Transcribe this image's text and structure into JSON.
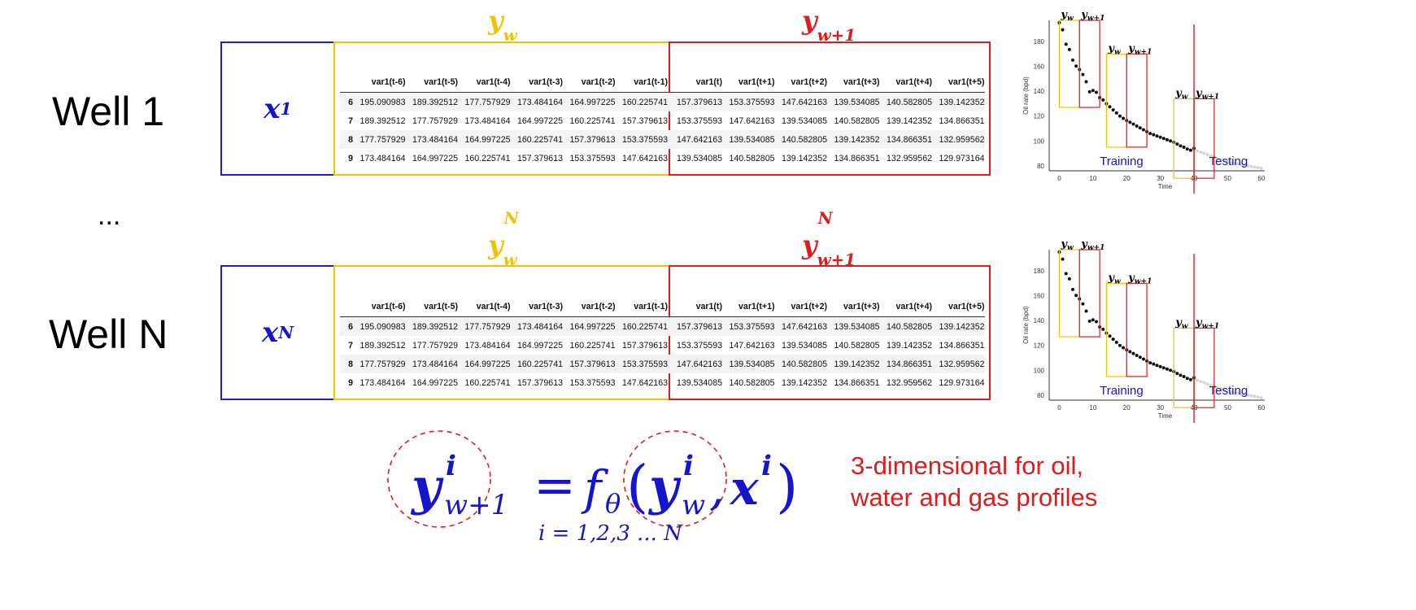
{
  "wells": [
    {
      "label": "Well 1",
      "x_sup": "1",
      "yw_sup": "1",
      "yw1_sup": "1"
    },
    {
      "label": "Well N",
      "x_sup": "N",
      "yw_sup": "N",
      "yw1_sup": "N"
    }
  ],
  "ellipsis": "...",
  "symbols": {
    "x": "x",
    "y": "y",
    "w": "w",
    "w1": "w+1"
  },
  "table": {
    "columns": [
      "var1(t-6)",
      "var1(t-5)",
      "var1(t-4)",
      "var1(t-3)",
      "var1(t-2)",
      "var1(t-1)",
      "var1(t)",
      "var1(t+1)",
      "var1(t+2)",
      "var1(t+3)",
      "var1(t+4)",
      "var1(t+5)"
    ],
    "rows": [
      {
        "index": "6",
        "values": [
          "195.090983",
          "189.392512",
          "177.757929",
          "173.484164",
          "164.997225",
          "160.225741",
          "157.379613",
          "153.375593",
          "147.642163",
          "139.534085",
          "140.582805",
          "139.142352"
        ]
      },
      {
        "index": "7",
        "values": [
          "189.392512",
          "177.757929",
          "173.484164",
          "164.997225",
          "160.225741",
          "157.379613",
          "153.375593",
          "147.642163",
          "139.534085",
          "140.582805",
          "139.142352",
          "134.866351"
        ]
      },
      {
        "index": "8",
        "values": [
          "177.757929",
          "173.484164",
          "164.997225",
          "160.225741",
          "157.379613",
          "153.375593",
          "147.642163",
          "139.534085",
          "140.582805",
          "139.142352",
          "134.866351",
          "132.959562"
        ]
      },
      {
        "index": "9",
        "values": [
          "173.484164",
          "164.997225",
          "160.225741",
          "157.379613",
          "153.375593",
          "147.642163",
          "139.534085",
          "140.582805",
          "139.142352",
          "134.866351",
          "132.959562",
          "129.973164"
        ]
      }
    ]
  },
  "chart_data": [
    {
      "type": "scatter",
      "xlabel": "Time",
      "ylabel": "Oil rate (bpd)",
      "xlim": [
        -3,
        61
      ],
      "ylim": [
        76,
        197
      ],
      "xticks": [
        "0",
        "10",
        "20",
        "30",
        "40",
        "50",
        "60"
      ],
      "yticks": [
        "80",
        "100",
        "120",
        "140",
        "160",
        "180"
      ],
      "grid": false,
      "annotations": {
        "training": "Training",
        "testing": "Testing",
        "yw": "y",
        "yw_sub": "w",
        "yw1_sub": "w+1"
      },
      "split_x": 40,
      "series": [
        {
          "x": [
            0,
            1,
            2,
            3,
            4,
            5,
            6,
            7,
            8,
            9,
            10,
            11,
            12,
            13,
            14,
            15,
            16,
            17,
            18,
            19,
            20,
            21,
            22,
            23,
            24,
            25,
            26,
            27,
            28,
            29,
            30,
            31,
            32,
            33,
            34,
            35,
            36,
            37,
            38,
            39,
            40,
            41,
            42,
            43,
            44,
            45,
            46,
            47,
            48,
            49,
            50,
            51,
            52,
            53,
            54,
            55,
            56,
            57,
            58,
            59,
            60
          ],
          "y": [
            195.1,
            189.4,
            177.8,
            173.5,
            165.0,
            160.2,
            157.4,
            153.4,
            147.6,
            139.5,
            140.6,
            139.1,
            134.9,
            133.0,
            130.0,
            127.5,
            125.0,
            122.5,
            120.0,
            118.2,
            116.5,
            115.0,
            113.5,
            112.0,
            110.5,
            109.0,
            107.5,
            106.0,
            105.0,
            104.0,
            103.0,
            102.0,
            101.0,
            100.0,
            99.0,
            97.5,
            96.0,
            95.0,
            93.5,
            92.5,
            94.0,
            92.0,
            91.0,
            90.0,
            89.0,
            88.0,
            87.0,
            86.0,
            85.0,
            84.0,
            83.0,
            82.5,
            82.0,
            81.5,
            81.0,
            80.5,
            80.0,
            79.5,
            79.0,
            78.5,
            78.0
          ]
        }
      ],
      "windows": [
        {
          "yw": [
            0,
            6
          ],
          "yw1": [
            6,
            12
          ],
          "ymax": 197,
          "ymin": 127
        },
        {
          "yw": [
            14,
            20
          ],
          "yw1": [
            20,
            26
          ],
          "ymax": 170,
          "ymin": 95
        },
        {
          "yw": [
            34,
            40
          ],
          "yw1": [
            40,
            46
          ],
          "ymax": 134,
          "ymin": 70
        }
      ]
    },
    {
      "type": "scatter",
      "xlabel": "Time",
      "ylabel": "Oil rate (bpd)",
      "xlim": [
        -3,
        61
      ],
      "ylim": [
        76,
        197
      ],
      "xticks": [
        "0",
        "10",
        "20",
        "30",
        "40",
        "50",
        "60"
      ],
      "yticks": [
        "80",
        "100",
        "120",
        "140",
        "160",
        "180"
      ],
      "grid": false,
      "annotations": {
        "training": "Training",
        "testing": "Testing",
        "yw": "y",
        "yw_sub": "w",
        "yw1_sub": "w+1"
      },
      "split_x": 40,
      "series": [
        {
          "x": [
            0,
            1,
            2,
            3,
            4,
            5,
            6,
            7,
            8,
            9,
            10,
            11,
            12,
            13,
            14,
            15,
            16,
            17,
            18,
            19,
            20,
            21,
            22,
            23,
            24,
            25,
            26,
            27,
            28,
            29,
            30,
            31,
            32,
            33,
            34,
            35,
            36,
            37,
            38,
            39,
            40,
            41,
            42,
            43,
            44,
            45,
            46,
            47,
            48,
            49,
            50,
            51,
            52,
            53,
            54,
            55,
            56,
            57,
            58,
            59,
            60
          ],
          "y": [
            195.1,
            189.4,
            177.8,
            173.5,
            165.0,
            160.2,
            157.4,
            153.4,
            147.6,
            139.5,
            140.6,
            139.1,
            134.9,
            133.0,
            130.0,
            127.5,
            125.0,
            122.5,
            120.0,
            118.2,
            116.5,
            115.0,
            113.5,
            112.0,
            110.5,
            109.0,
            107.5,
            106.0,
            105.0,
            104.0,
            103.0,
            102.0,
            101.0,
            100.0,
            99.0,
            97.5,
            96.0,
            95.0,
            93.5,
            92.5,
            94.0,
            92.0,
            91.0,
            90.0,
            89.0,
            88.0,
            87.0,
            86.0,
            85.0,
            84.0,
            83.0,
            82.5,
            82.0,
            81.5,
            81.0,
            80.5,
            80.0,
            79.5,
            79.0,
            78.5,
            78.0
          ]
        }
      ],
      "windows": [
        {
          "yw": [
            0,
            6
          ],
          "yw1": [
            6,
            12
          ],
          "ymax": 197,
          "ymin": 127
        },
        {
          "yw": [
            14,
            20
          ],
          "yw1": [
            20,
            26
          ],
          "ymax": 170,
          "ymin": 95
        },
        {
          "yw": [
            34,
            40
          ],
          "yw1": [
            40,
            46
          ],
          "ymax": 134,
          "ymin": 70
        }
      ]
    }
  ],
  "equation": {
    "lhs_base": "y",
    "lhs_sup": "i",
    "lhs_sub": "w+1",
    "equals": "=",
    "func": "f",
    "func_sub": "θ",
    "open_paren": "(",
    "arg1_base": "y",
    "arg1_sup": "i",
    "arg1_sub": "w",
    "comma": ",",
    "arg2_base": "x",
    "arg2_sup": "i",
    "close_paren": ")",
    "index_note": "i = 1,2,3 ... N"
  },
  "note": {
    "line1": "3-dimensional for oil,",
    "line2": "water and gas profiles"
  },
  "colors": {
    "x_box": "#1f1fd0",
    "yw_box": "#f2c200",
    "yw1_box": "#e01b1b",
    "equation": "#1515cc",
    "note": "#e01b1b",
    "points": "#111111",
    "testing_points": "#d6d6d6"
  }
}
